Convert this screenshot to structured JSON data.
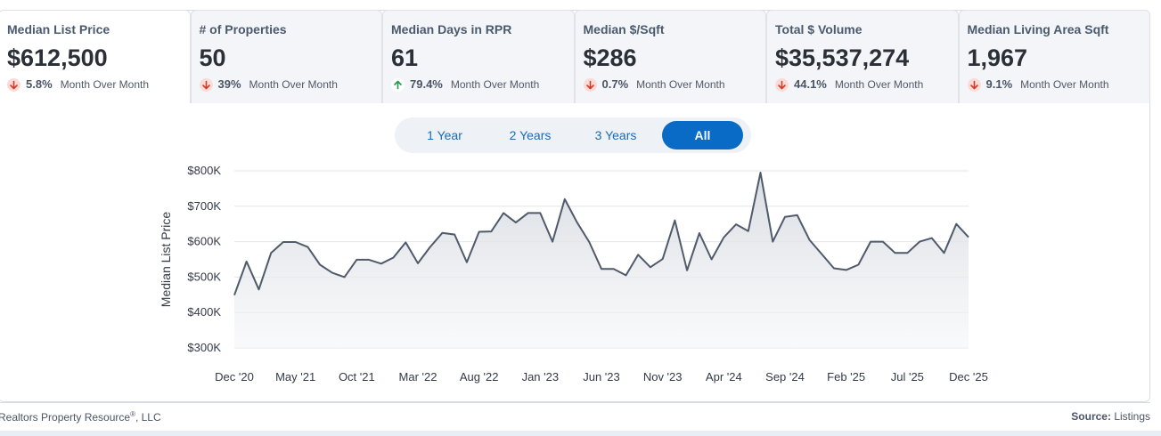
{
  "tabs": [
    {
      "title": "Median List Price",
      "value": "$612,500",
      "direction": "down",
      "pct": "5.8%",
      "period": "Month Over Month",
      "active": true
    },
    {
      "title": "# of Properties",
      "value": "50",
      "direction": "down",
      "pct": "39%",
      "period": "Month Over Month",
      "active": false
    },
    {
      "title": "Median Days in RPR",
      "value": "61",
      "direction": "up",
      "pct": "79.4%",
      "period": "Month Over Month",
      "active": false
    },
    {
      "title": "Median $/Sqft",
      "value": "$286",
      "direction": "down",
      "pct": "0.7%",
      "period": "Month Over Month",
      "active": false
    },
    {
      "title": "Total $ Volume",
      "value": "$35,537,274",
      "direction": "down",
      "pct": "44.1%",
      "period": "Month Over Month",
      "active": false
    },
    {
      "title": "Median Living Area Sqft",
      "value": "1,967",
      "direction": "down",
      "pct": "9.1%",
      "period": "Month Over Month",
      "active": false
    }
  ],
  "range": {
    "options": [
      "1 Year",
      "2 Years",
      "3 Years",
      "All"
    ],
    "selected": "All"
  },
  "chart_data": {
    "type": "area",
    "title": "",
    "xlabel": "",
    "ylabel": "Median List Price",
    "ylim": [
      280000,
      800000
    ],
    "yticks": [
      300000,
      400000,
      500000,
      600000,
      700000,
      800000
    ],
    "ytick_labels": [
      "$300K",
      "$400K",
      "$500K",
      "$600K",
      "$700K",
      "$800K"
    ],
    "xticks": [
      {
        "index": 0,
        "label": "Dec '20"
      },
      {
        "index": 5,
        "label": "May '21"
      },
      {
        "index": 10,
        "label": "Oct '21"
      },
      {
        "index": 15,
        "label": "Mar '22"
      },
      {
        "index": 20,
        "label": "Aug '22"
      },
      {
        "index": 25,
        "label": "Jan '23"
      },
      {
        "index": 30,
        "label": "Jun '23"
      },
      {
        "index": 35,
        "label": "Nov '23"
      },
      {
        "index": 40,
        "label": "Apr '24"
      },
      {
        "index": 45,
        "label": "Sep '24"
      },
      {
        "index": 50,
        "label": "Feb '25"
      },
      {
        "index": 55,
        "label": "Jul '25"
      },
      {
        "index": 60,
        "label": "Dec '25"
      }
    ],
    "x": [
      "Dec '20",
      "Jan '21",
      "Feb '21",
      "Mar '21",
      "Apr '21",
      "May '21",
      "Jun '21",
      "Jul '21",
      "Aug '21",
      "Sep '21",
      "Oct '21",
      "Nov '21",
      "Dec '21",
      "Jan '22",
      "Feb '22",
      "Mar '22",
      "Apr '22",
      "May '22",
      "Jun '22",
      "Jul '22",
      "Aug '22",
      "Sep '22",
      "Oct '22",
      "Nov '22",
      "Dec '22",
      "Jan '23",
      "Feb '23",
      "Mar '23",
      "Apr '23",
      "May '23",
      "Jun '23",
      "Jul '23",
      "Aug '23",
      "Sep '23",
      "Oct '23",
      "Nov '23",
      "Dec '23",
      "Jan '24",
      "Feb '24",
      "Mar '24",
      "Apr '24",
      "May '24",
      "Jun '24",
      "Jul '24",
      "Aug '24",
      "Sep '24",
      "Oct '24",
      "Nov '24",
      "Dec '24",
      "Jan '25",
      "Feb '25",
      "Mar '25",
      "Apr '25",
      "May '25",
      "Jun '25",
      "Jul '25",
      "Aug '25",
      "Sep '25",
      "Oct '25",
      "Nov '25",
      "Dec '25"
    ],
    "series": [
      {
        "name": "Median List Price",
        "color": "#4f5a6b",
        "values": [
          449000,
          544000,
          465000,
          568000,
          599000,
          599000,
          585000,
          535000,
          512000,
          500000,
          549000,
          549000,
          538000,
          555000,
          598000,
          539000,
          585000,
          625000,
          620000,
          542000,
          628000,
          629000,
          681000,
          654000,
          681000,
          681000,
          600000,
          720000,
          655000,
          599000,
          523000,
          523000,
          505000,
          563000,
          528000,
          551000,
          660000,
          519000,
          624000,
          550000,
          612000,
          649000,
          630000,
          795000,
          600000,
          670000,
          675000,
          605000,
          565000,
          525000,
          520000,
          535000,
          600000,
          600000,
          568000,
          568000,
          600000,
          610000,
          568000,
          650000,
          612500
        ]
      }
    ]
  },
  "footer": {
    "left_text": "Realtors Property Resource",
    "left_suffix": ", LLC",
    "reg_mark": "®",
    "source_label": "Source:",
    "source_value": "Listings"
  }
}
